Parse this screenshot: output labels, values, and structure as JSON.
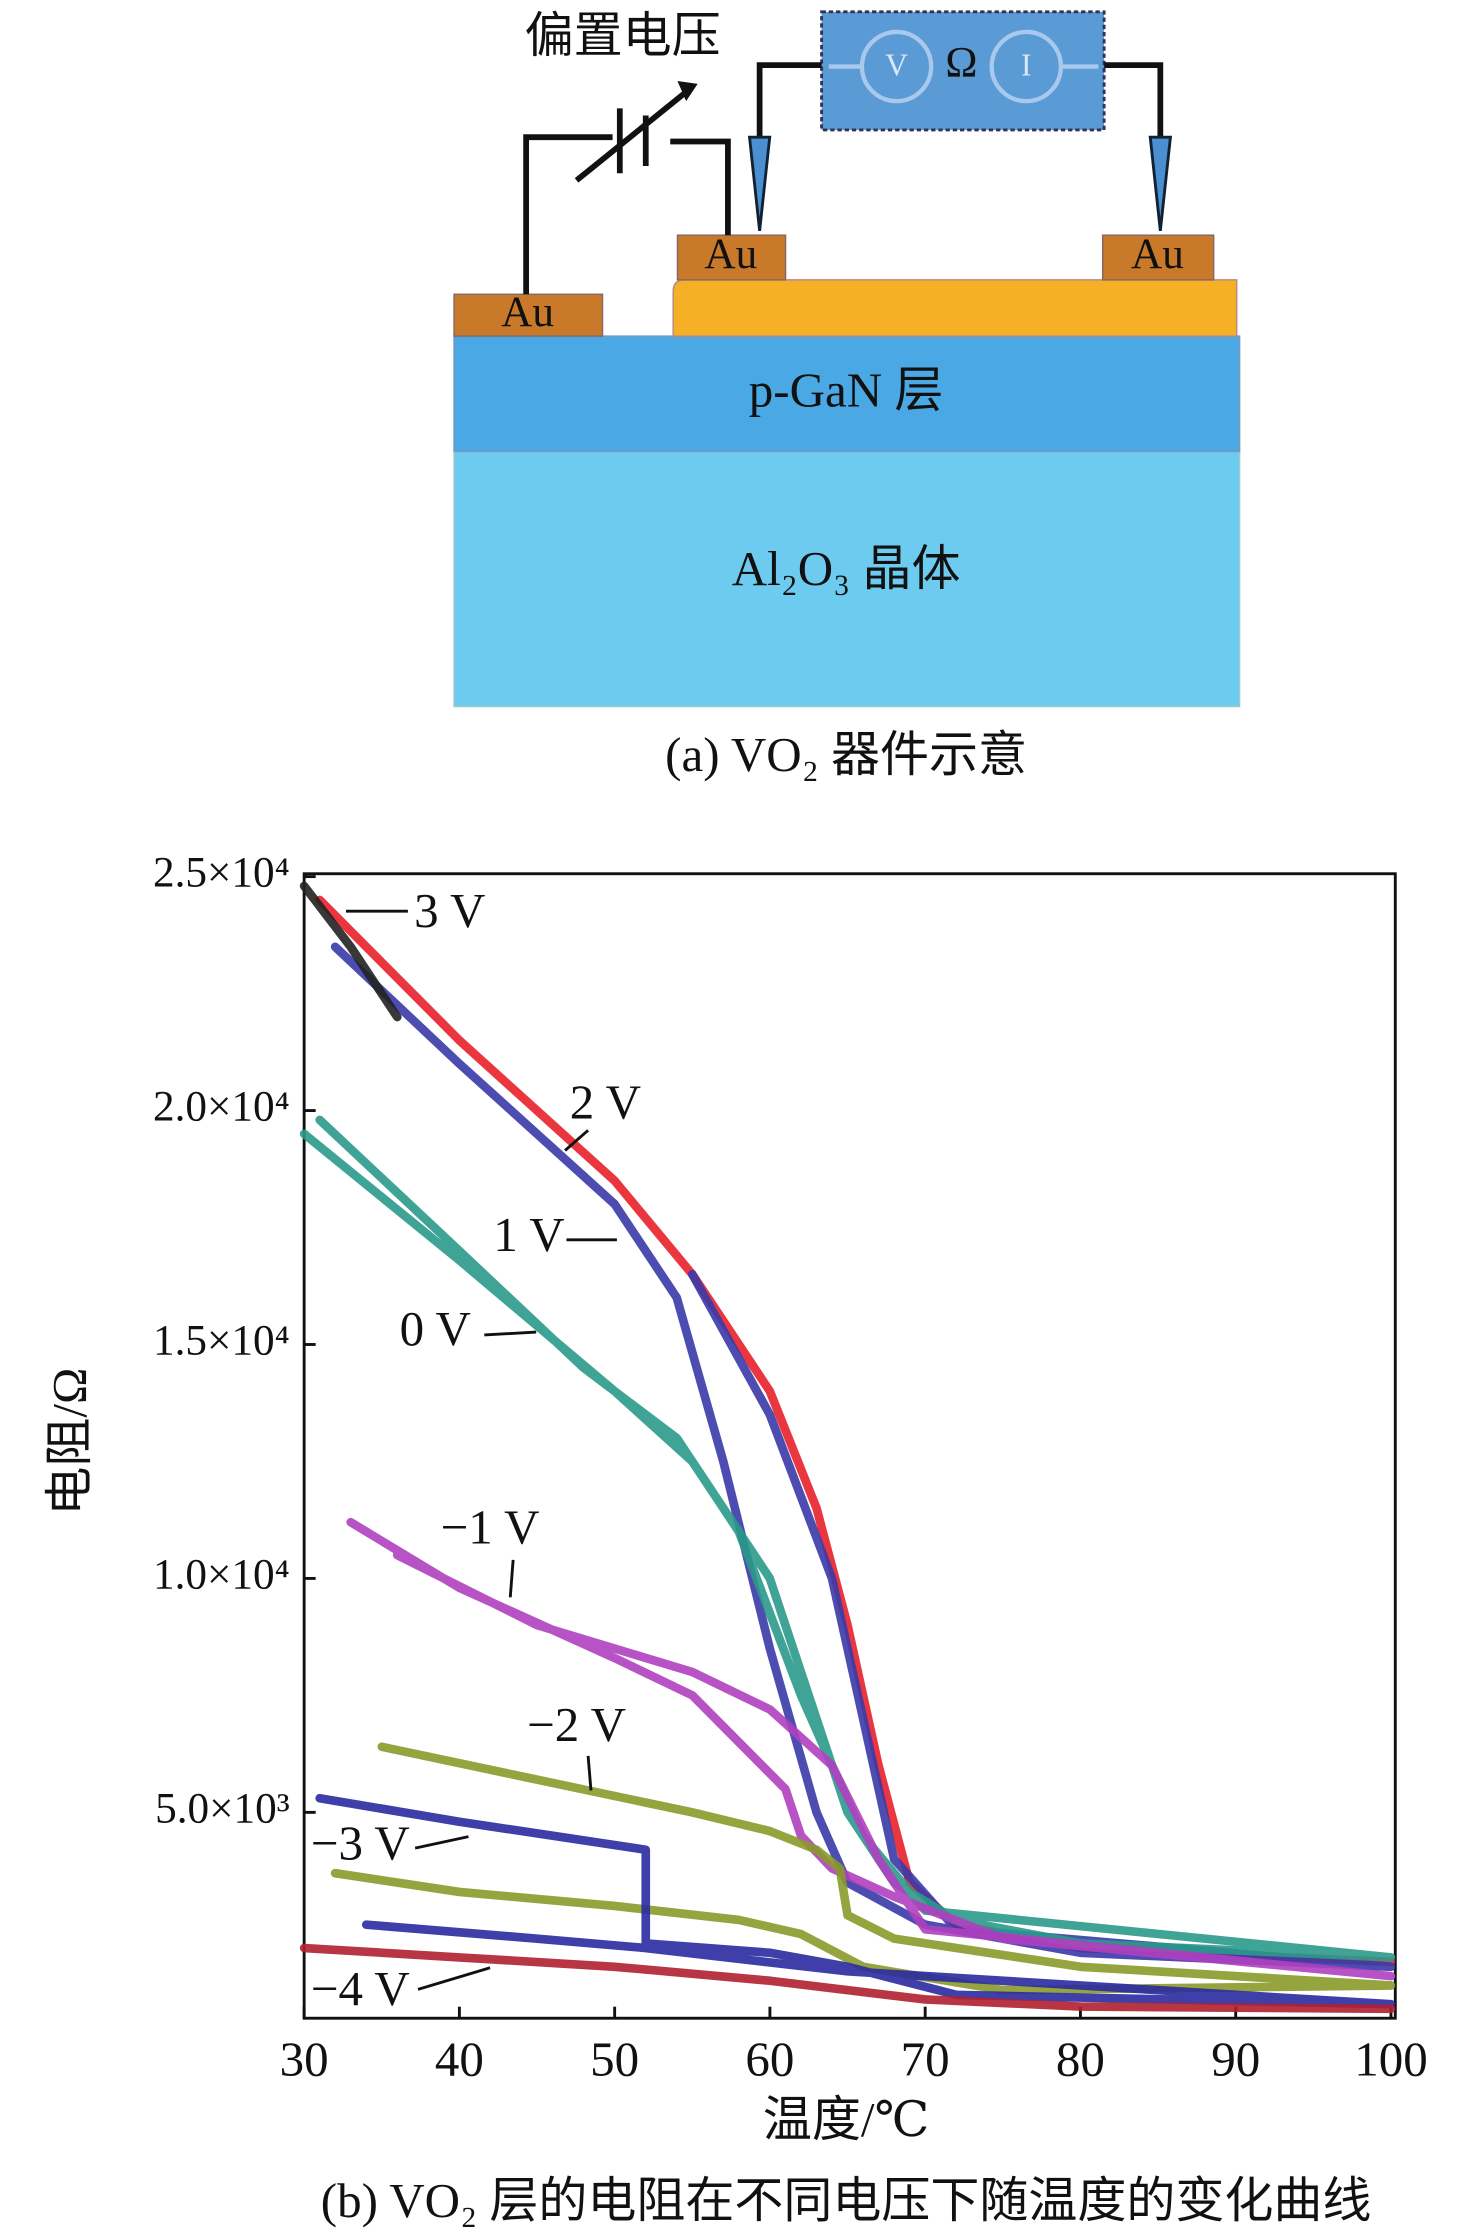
{
  "diagram": {
    "bias_label": "偏置电压",
    "meter_label": "Ω",
    "meter_v": "V",
    "meter_i": "I",
    "au_left": "Au",
    "au_middle": "Au",
    "au_right": "Au",
    "layer_top": "p-GaN 层",
    "layer_bottom": "Al₂O₃ 晶体",
    "caption": "(a) VO₂ 器件示意"
  },
  "chart_data": {
    "type": "line",
    "caption": "(b) VO₂ 层的电阻在不同电压下随温度的变化曲线",
    "xlabel": "温度/℃",
    "ylabel": "电阻/Ω",
    "xlim": [
      30,
      100
    ],
    "xticks": [
      30,
      40,
      50,
      60,
      70,
      80,
      90,
      100
    ],
    "ylim": [
      600,
      25000
    ],
    "yticks": [
      {
        "value": 5000,
        "label": "5.0×10³"
      },
      {
        "value": 10000,
        "label": "1.0×10⁴"
      },
      {
        "value": 15000,
        "label": "1.5×10⁴"
      },
      {
        "value": 20000,
        "label": "2.0×10⁴"
      },
      {
        "value": 25000,
        "label": "2.5×10⁴"
      }
    ],
    "series": [
      {
        "name": "2 V",
        "color": "#e8202a",
        "x": [
          31,
          40,
          50,
          55,
          60,
          63,
          65,
          67,
          69,
          72,
          80,
          100
        ],
        "values": [
          24500,
          21500,
          18500,
          16500,
          14000,
          11500,
          9000,
          6000,
          3500,
          2600,
          2100,
          1800
        ]
      },
      {
        "name": "1 V",
        "color": "#3a3aa8",
        "x": [
          32,
          40,
          50,
          54,
          57,
          60,
          63,
          65,
          70,
          80,
          100,
          72,
          68,
          66,
          64,
          60,
          55
        ],
        "values": [
          23500,
          21000,
          18000,
          16000,
          12500,
          8500,
          5000,
          3500,
          2600,
          2000,
          1700,
          2500,
          4000,
          7000,
          10000,
          13500,
          16500
        ]
      },
      {
        "name": "3 V",
        "color": "#222222",
        "x": [
          30,
          33,
          36
        ],
        "values": [
          24800,
          23500,
          22000
        ]
      },
      {
        "name": "0 V",
        "color": "#2a9a8a",
        "x": [
          30,
          40,
          50,
          55,
          60,
          63,
          65,
          68,
          72,
          80,
          100,
          70,
          66,
          62,
          58,
          54,
          48,
          40,
          31
        ],
        "values": [
          19500,
          16800,
          14000,
          12500,
          10000,
          7000,
          5000,
          3500,
          2700,
          2200,
          1900,
          2900,
          4500,
          7500,
          11000,
          13000,
          14500,
          17000,
          19800
        ]
      },
      {
        "name": "−1 V",
        "color": "#b040c0",
        "x": [
          33,
          40,
          50,
          55,
          58,
          61,
          62,
          64,
          68,
          75,
          100,
          70,
          67,
          64,
          60,
          55,
          45,
          36
        ],
        "values": [
          11200,
          9800,
          8300,
          7500,
          6500,
          5500,
          4500,
          3800,
          3200,
          2300,
          1500,
          2500,
          4000,
          6000,
          7200,
          8000,
          9000,
          10500
        ]
      },
      {
        "name": "−2 V",
        "color": "#8a9a2a",
        "x": [
          35,
          45,
          55,
          60,
          63,
          64.5,
          65,
          68,
          80,
          100,
          75,
          66,
          62,
          58,
          50,
          40,
          32
        ],
        "values": [
          6400,
          5700,
          5000,
          4600,
          4200,
          3800,
          2800,
          2300,
          1700,
          1300,
          1200,
          1700,
          2400,
          2700,
          3000,
          3300,
          3700
        ]
      },
      {
        "name": "−3 V",
        "color": "#2a2aa0",
        "x": [
          31,
          40,
          52,
          52,
          60,
          65,
          72,
          100,
          65,
          52,
          45,
          34
        ],
        "values": [
          5300,
          4800,
          4200,
          2200,
          2000,
          1700,
          1100,
          900,
          1600,
          2100,
          2300,
          2600
        ]
      },
      {
        "name": "−4 V",
        "color": "#b02030",
        "x": [
          30,
          40,
          50,
          60,
          70,
          80,
          100
        ],
        "values": [
          2100,
          1900,
          1700,
          1400,
          1000,
          850,
          800
        ]
      }
    ]
  }
}
